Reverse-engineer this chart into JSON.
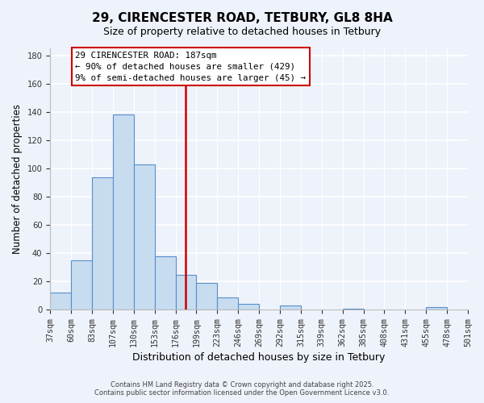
{
  "title": "29, CIRENCESTER ROAD, TETBURY, GL8 8HA",
  "subtitle": "Size of property relative to detached houses in Tetbury",
  "xlabel": "Distribution of detached houses by size in Tetbury",
  "ylabel": "Number of detached properties",
  "bar_values": [
    12,
    35,
    94,
    138,
    103,
    38,
    25,
    19,
    9,
    4,
    0,
    3,
    0,
    0,
    1,
    0,
    0,
    0,
    2,
    0
  ],
  "bar_labels": [
    "37sqm",
    "60sqm",
    "83sqm",
    "107sqm",
    "130sqm",
    "153sqm",
    "176sqm",
    "199sqm",
    "223sqm",
    "246sqm",
    "269sqm",
    "292sqm",
    "315sqm",
    "339sqm",
    "362sqm",
    "385sqm",
    "408sqm",
    "431sqm",
    "455sqm",
    "478sqm",
    "501sqm"
  ],
  "n_bins": 20,
  "bar_color": "#c8dcf0",
  "bar_edge_color": "#5590c8",
  "vline_bin": 7,
  "vline_color": "#cc0000",
  "annotation_title": "29 CIRENCESTER ROAD: 187sqm",
  "annotation_line1": "← 90% of detached houses are smaller (429)",
  "annotation_line2": "9% of semi-detached houses are larger (45) →",
  "annotation_box_color": "#ffffff",
  "annotation_box_edge": "#cc0000",
  "ylim": [
    0,
    185
  ],
  "yticks": [
    0,
    20,
    40,
    60,
    80,
    100,
    120,
    140,
    160,
    180
  ],
  "footer1": "Contains HM Land Registry data © Crown copyright and database right 2025.",
  "footer2": "Contains public sector information licensed under the Open Government Licence v3.0.",
  "background_color": "#eef2fa",
  "grid_color": "#ffffff",
  "title_fontsize": 11,
  "subtitle_fontsize": 9
}
